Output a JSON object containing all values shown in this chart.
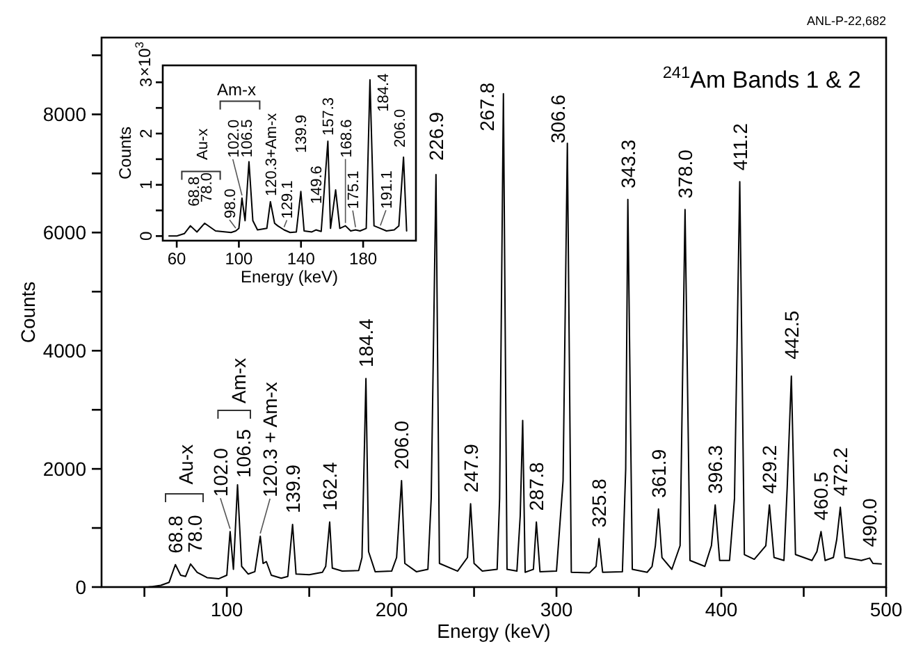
{
  "chart_data": [
    {
      "type": "line",
      "title": "$^{241}$Am  Bands 1 & 2",
      "xlabel": "Energy  (keV)",
      "ylabel": "Counts",
      "color": "#000000",
      "grid": false,
      "marker": "none",
      "xlim": [
        24,
        500
      ],
      "ylim": [
        0,
        9300
      ],
      "xticks": [
        {
          "value": 50,
          "label": null
        },
        100,
        {
          "value": 150,
          "label": null
        },
        200,
        {
          "value": 250,
          "label": null
        },
        300,
        {
          "value": 350,
          "label": null
        },
        400,
        {
          "value": 450,
          "label": null
        },
        500
      ],
      "yticks": [
        0,
        {
          "value": 1000,
          "label": null
        },
        2000,
        {
          "value": 3000,
          "label": null
        },
        4000,
        {
          "value": 5000,
          "label": null
        },
        6000,
        {
          "value": 7000,
          "label": null
        },
        8000,
        {
          "value": 9000,
          "label": null
        }
      ],
      "x": [
        52,
        55,
        60,
        65,
        68.8,
        72,
        75,
        78,
        82,
        88,
        95,
        100,
        102,
        104,
        106.5,
        109,
        113,
        117,
        120.3,
        122,
        124,
        127,
        133,
        137,
        139.9,
        142,
        150,
        158,
        160,
        162.4,
        164,
        170,
        180,
        182,
        184.4,
        186,
        190,
        200,
        203,
        206,
        208,
        215,
        222,
        224,
        226.9,
        229,
        240,
        246,
        247.9,
        250,
        255,
        264,
        265.5,
        267.8,
        270,
        276,
        278,
        279.5,
        281,
        286,
        287.8,
        290,
        300,
        304,
        306.6,
        309,
        320,
        324,
        325.8,
        328,
        340,
        342,
        343.3,
        346,
        355,
        358,
        360,
        361.9,
        364,
        370,
        375,
        378,
        381,
        390,
        394,
        396.3,
        399,
        405,
        408,
        411.2,
        414,
        420,
        427,
        429.2,
        432,
        438,
        440,
        442.5,
        445,
        455,
        458,
        460.5,
        463,
        468,
        470,
        472.2,
        475,
        485,
        490,
        492,
        497
      ],
      "values": [
        0,
        10,
        30,
        80,
        380,
        200,
        180,
        390,
        250,
        160,
        140,
        200,
        940,
        300,
        1730,
        350,
        220,
        260,
        860,
        400,
        430,
        200,
        150,
        180,
        1060,
        220,
        210,
        250,
        350,
        1100,
        320,
        270,
        280,
        500,
        3530,
        600,
        260,
        270,
        500,
        1800,
        400,
        260,
        300,
        1500,
        6980,
        400,
        270,
        500,
        1410,
        400,
        270,
        300,
        1500,
        8350,
        300,
        270,
        1200,
        2820,
        250,
        300,
        1100,
        260,
        270,
        1800,
        7510,
        250,
        240,
        350,
        820,
        250,
        260,
        2000,
        6560,
        300,
        250,
        350,
        700,
        1320,
        500,
        300,
        700,
        6390,
        450,
        350,
        700,
        1390,
        450,
        450,
        1500,
        6860,
        550,
        470,
        700,
        1390,
        500,
        450,
        1700,
        3570,
        550,
        450,
        600,
        940,
        450,
        500,
        800,
        1350,
        500,
        450,
        490,
        400,
        390
      ],
      "annotations": [
        {
          "text": "68.8",
          "x": 68.8,
          "y": 380
        },
        {
          "text": "78.0",
          "x": 78,
          "y": 390
        },
        "Au-x",
        {
          "text": "102.0",
          "x": 102,
          "y": 940
        },
        {
          "text": "106.5",
          "x": 106.5,
          "y": 1730
        },
        "Am-x",
        {
          "text": "120.3 + Am-x",
          "x": 120.3,
          "y": 860
        },
        {
          "text": "139.9",
          "x": 139.9,
          "y": 1060
        },
        {
          "text": "162.4",
          "x": 162.4,
          "y": 1100
        },
        {
          "text": "184.4",
          "x": 184.4,
          "y": 3530
        },
        {
          "text": "206.0",
          "x": 206,
          "y": 1800
        },
        {
          "text": "226.9",
          "x": 226.9,
          "y": 6980
        },
        {
          "text": "247.9",
          "x": 247.9,
          "y": 1410
        },
        {
          "text": "267.8",
          "x": 267.8,
          "y": 8350
        },
        {
          "text": "287.8",
          "x": 287.8,
          "y": 1100
        },
        {
          "text": "306.6",
          "x": 306.6,
          "y": 7510
        },
        {
          "text": "325.8",
          "x": 325.8,
          "y": 820
        },
        {
          "text": "343.3",
          "x": 343.3,
          "y": 6560
        },
        {
          "text": "361.9",
          "x": 361.9,
          "y": 1320
        },
        {
          "text": "378.0",
          "x": 378,
          "y": 6390
        },
        {
          "text": "396.3",
          "x": 396.3,
          "y": 1390
        },
        {
          "text": "411.2",
          "x": 411.2,
          "y": 6860
        },
        {
          "text": "429.2",
          "x": 429.2,
          "y": 1390
        },
        {
          "text": "442.5",
          "x": 442.5,
          "y": 3570
        },
        {
          "text": "460.5",
          "x": 460.5,
          "y": 940
        },
        {
          "text": "472.2",
          "x": 472.2,
          "y": 1350
        },
        {
          "text": "490.0",
          "x": 490,
          "y": 490
        },
        "ANL-P-22,682"
      ]
    },
    {
      "type": "line",
      "xlabel": "Energy  (keV)",
      "ylabel": "Counts",
      "color": "#000000",
      "grid": false,
      "marker": "none",
      "xlim": [
        51,
        214
      ],
      "ylim": [
        -0.09,
        3.33
      ],
      "xticks": [
        60,
        100,
        140,
        180
      ],
      "yticks": [
        0,
        {
          "value": 0.5,
          "label": null
        },
        1,
        {
          "value": 1.5,
          "label": null
        },
        2,
        {
          "value": 2.5,
          "label": null
        },
        3
      ],
      "x": [
        55,
        60,
        65,
        68.8,
        73,
        78,
        85,
        95,
        98,
        100,
        102,
        104,
        106.5,
        109,
        112,
        118,
        120.3,
        123,
        125,
        129.1,
        133,
        137,
        139.9,
        142,
        147,
        149.6,
        153,
        157.3,
        159,
        162.3,
        165,
        168.6,
        172,
        175.1,
        178,
        182,
        184.4,
        187,
        191.1,
        195,
        200,
        203,
        206,
        208
      ],
      "values": [
        0,
        0,
        0.05,
        0.2,
        0.08,
        0.25,
        0.1,
        0.07,
        0.1,
        0.15,
        0.74,
        0.3,
        1.45,
        0.3,
        0.12,
        0.15,
        0.67,
        0.25,
        0.2,
        0.12,
        0.07,
        0.08,
        0.87,
        0.1,
        0.08,
        0.12,
        0.09,
        1.85,
        0.15,
        0.9,
        0.15,
        0.2,
        0.1,
        0.12,
        0.1,
        0.15,
        3.05,
        0.2,
        0.15,
        0.1,
        0.12,
        0.2,
        1.54,
        0.1
      ],
      "annotations": [
        {
          "text": "68.8",
          "x": 68.8,
          "y": 0.2
        },
        {
          "text": "78.0",
          "x": 78,
          "y": 0.25
        },
        {
          "text": "98.0",
          "x": 98,
          "y": 0.1
        },
        "Au-x",
        {
          "text": "102.0",
          "x": 102,
          "y": 0.74
        },
        {
          "text": "106.5",
          "x": 106.5,
          "y": 1.45
        },
        "Am-x",
        {
          "text": "120.3+Am-x",
          "x": 120.3,
          "y": 0.67
        },
        {
          "text": "129.1",
          "x": 129.1,
          "y": 0.12
        },
        {
          "text": "139.9",
          "x": 139.9,
          "y": 0.87
        },
        {
          "text": "149.6",
          "x": 149.6,
          "y": 0.12
        },
        {
          "text": "157.3",
          "x": 157.3,
          "y": 1.85
        },
        {
          "text": "168.6",
          "x": 168.6,
          "y": 0.2
        },
        {
          "text": "175.1",
          "x": 175.1,
          "y": 0.12
        },
        {
          "text": "184.4",
          "x": 184.4,
          "y": 3.05
        },
        {
          "text": "191.1",
          "x": 191.1,
          "y": 0.15
        },
        {
          "text": "206.0",
          "x": 206,
          "y": 1.54
        },
        "×10$^{3}$"
      ]
    }
  ]
}
